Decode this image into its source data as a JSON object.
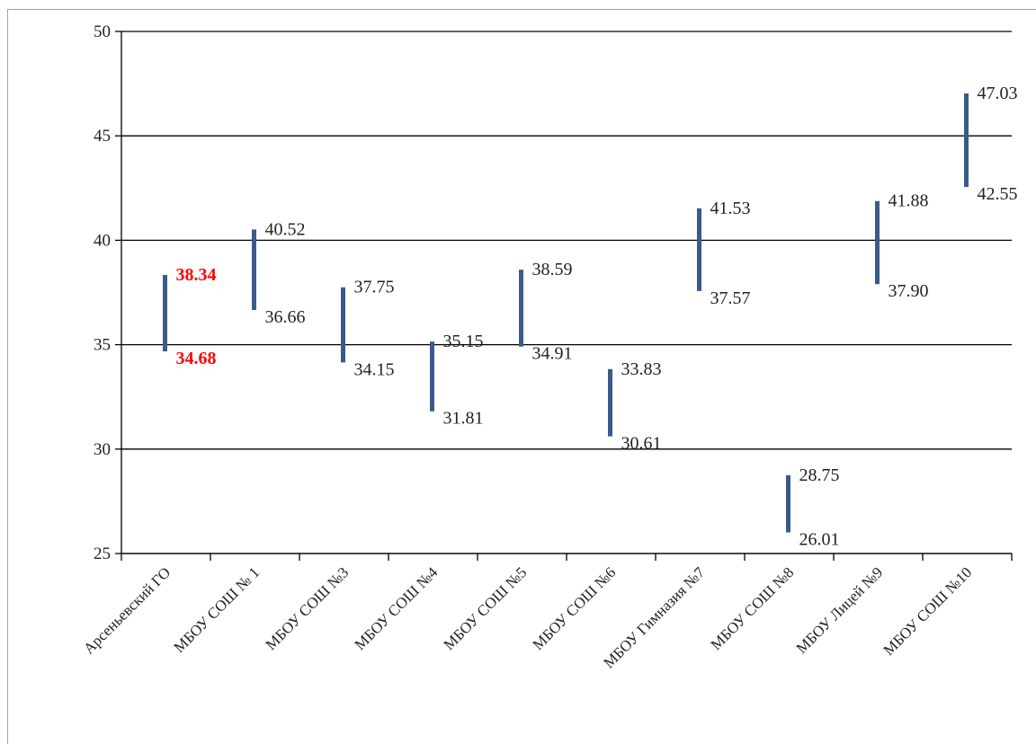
{
  "chart_data": {
    "type": "range",
    "categories": [
      "Арсеньевский ГО",
      "МБОУ СОШ № 1",
      "МБОУ СОШ №3",
      "МБОУ СОШ №4",
      "МБОУ СОШ №5",
      "МБОУ СОШ №6",
      "МБОУ Гимназия  №7",
      "МБОУ СОШ №8",
      "МБОУ  Лицей №9",
      "МБОУ СОШ №10"
    ],
    "series": [
      {
        "high": [
          38.34,
          40.52,
          37.75,
          35.15,
          38.59,
          33.83,
          41.53,
          28.75,
          41.88,
          47.03
        ],
        "low": [
          34.68,
          36.66,
          34.15,
          31.81,
          34.91,
          30.61,
          37.57,
          26.01,
          37.9,
          42.55
        ],
        "high_labels": [
          "38.34",
          "40.52",
          "37.75",
          "35.15",
          "38.59",
          "33.83",
          "41.53",
          "28.75",
          "41.88",
          "47.03"
        ],
        "low_labels": [
          "34.68",
          "36.66",
          "34.15",
          "31.81",
          "34.91",
          "30.61",
          "37.57",
          "26.01",
          "37.90",
          "42.55"
        ],
        "highlight_index": 0
      }
    ],
    "yticks": [
      "25",
      "30",
      "35",
      "40",
      "45",
      "50"
    ],
    "ylim": [
      25,
      50
    ],
    "grid": true,
    "colors": {
      "bar": "#3a5a8c",
      "highlight_label": "#ff0000",
      "grid": "#000000",
      "text": "#222222"
    }
  }
}
